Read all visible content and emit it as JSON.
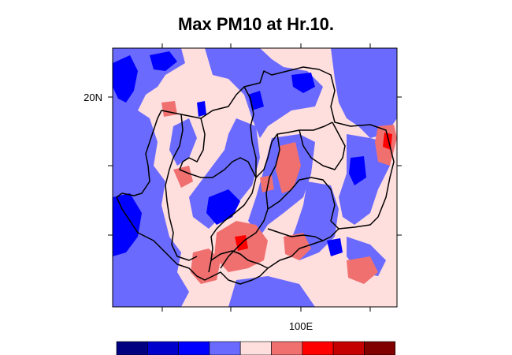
{
  "title": "Max PM10 at Hr.10.",
  "axis": {
    "lat_label": "20N",
    "lon_label": "100E"
  },
  "colorbar": {
    "colors": [
      "#000080",
      "#0000cd",
      "#0000ff",
      "#6a6aff",
      "#ffdede",
      "#f07070",
      "#ff0000",
      "#c40000",
      "#800000"
    ]
  },
  "field_colors": {
    "background": "#ffdede",
    "medium_blue": "#6a6aff",
    "deep_blue": "#0000ff",
    "light_red": "#f07070",
    "red": "#ff0000"
  },
  "borders": {
    "color": "#000000"
  }
}
